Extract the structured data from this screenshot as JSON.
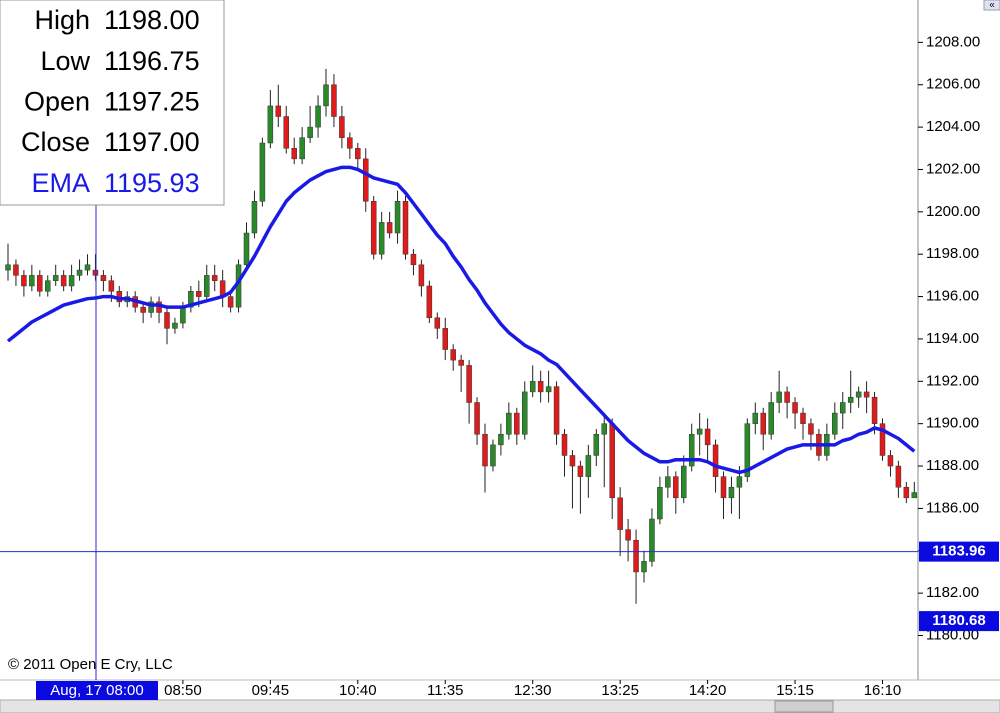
{
  "chart_data": {
    "type": "candlestick",
    "categories": [
      null,
      null,
      null,
      null,
      null,
      null,
      null,
      null,
      null,
      null,
      null,
      null,
      null,
      null,
      null,
      null,
      null,
      null,
      null,
      null,
      null,
      null,
      "08:50",
      null,
      null,
      null,
      null,
      null,
      null,
      null,
      null,
      null,
      null,
      "09:45",
      null,
      null,
      null,
      null,
      null,
      null,
      null,
      null,
      null,
      null,
      "10:40",
      null,
      null,
      null,
      null,
      null,
      null,
      null,
      null,
      null,
      null,
      "11:35",
      null,
      null,
      null,
      null,
      null,
      null,
      null,
      null,
      null,
      null,
      "12:30",
      null,
      null,
      null,
      null,
      null,
      null,
      null,
      null,
      null,
      null,
      "13:25",
      null,
      null,
      null,
      null,
      null,
      null,
      null,
      null,
      null,
      null,
      "14:20",
      null,
      null,
      null,
      null,
      null,
      null,
      null,
      null,
      null,
      null,
      "15:15",
      null,
      null,
      null,
      null,
      null,
      null,
      null,
      null,
      null,
      null,
      "16:10",
      null,
      null,
      null,
      null
    ],
    "open": [
      1197.25,
      1197.5,
      1197,
      1196.5,
      1197,
      1196.25,
      1196.75,
      1197,
      1196.5,
      1197,
      1197.25,
      1197.25,
      1197,
      1196.75,
      1196.25,
      1195.75,
      1196,
      1195.5,
      1195.25,
      1195.75,
      1195.25,
      1194.5,
      1194.75,
      1195.5,
      1196.25,
      1196,
      1197,
      1196.75,
      1196,
      1195.5,
      1197.5,
      1199,
      1200.5,
      1203.25,
      1205,
      1204.5,
      1203,
      1202.5,
      1203.5,
      1204,
      1205,
      1206,
      1204.5,
      1203.5,
      1203,
      1202.5,
      1200.5,
      1198,
      1199.5,
      1199,
      1200.5,
      1198,
      1197.5,
      1196.5,
      1195,
      1194.5,
      1193.5,
      1193,
      1192.75,
      1191,
      1189.5,
      1188,
      1189,
      1189.5,
      1190.5,
      1189.5,
      1191.5,
      1192,
      1191.5,
      1191.75,
      1189.5,
      1188.5,
      1188,
      1187.5,
      1188.5,
      1189.5,
      1190,
      1186.5,
      1185,
      1184.5,
      1183,
      1183.5,
      1185.5,
      1187,
      1187.5,
      1186.5,
      1188,
      1189.5,
      1189.75,
      1189,
      1187.5,
      1186.5,
      1187,
      1187.5,
      1190,
      1190.5,
      1189.5,
      1191,
      1191.5,
      1191,
      1190.5,
      1190,
      1189.5,
      1188.5,
      1189.5,
      1190.5,
      1191,
      1191.25,
      1191.5,
      1191.25,
      1190,
      1188.5,
      1188,
      1187,
      1186.5
    ],
    "high": [
      1198.5,
      1197.75,
      1197.25,
      1197.5,
      1197.25,
      1197,
      1197.5,
      1197.25,
      1197.5,
      1197.75,
      1198,
      1198,
      1197.25,
      1197,
      1196.5,
      1196.25,
      1196.25,
      1195.75,
      1196,
      1196,
      1195.5,
      1195,
      1195.75,
      1196.5,
      1196.75,
      1197.5,
      1197.5,
      1197.25,
      1196.25,
      1197.75,
      1199.5,
      1201,
      1203.5,
      1205.75,
      1206,
      1205,
      1203.5,
      1204,
      1205,
      1205.5,
      1206.75,
      1206.5,
      1205,
      1203.75,
      1203.25,
      1203,
      1200.75,
      1200,
      1200,
      1201,
      1200.75,
      1198.25,
      1197.75,
      1196.75,
      1195.25,
      1195,
      1193.75,
      1193.25,
      1193,
      1191.25,
      1190,
      1189.25,
      1190,
      1191,
      1190.75,
      1192,
      1192.75,
      1192.5,
      1192.5,
      1192,
      1189.75,
      1188.75,
      1188.25,
      1189,
      1189.75,
      1190.5,
      1190.25,
      1187,
      1185.5,
      1185,
      1184,
      1186,
      1187.5,
      1188,
      1187.75,
      1188.5,
      1190,
      1190.5,
      1190.25,
      1189.25,
      1187.75,
      1187.5,
      1188,
      1190.25,
      1191,
      1190.75,
      1191.5,
      1192.5,
      1191.75,
      1191.25,
      1190.75,
      1190.25,
      1189.75,
      1190,
      1191,
      1191.5,
      1192.5,
      1191.75,
      1192,
      1191.5,
      1190.25,
      1188.75,
      1188.25,
      1187.25,
      1187.25
    ],
    "low": [
      1196.75,
      1196.5,
      1196,
      1196.25,
      1196,
      1196,
      1196.5,
      1196.25,
      1196.25,
      1196.75,
      1197,
      1196.75,
      1196.25,
      1195.75,
      1195.5,
      1195.5,
      1195.25,
      1194.75,
      1195,
      1194.75,
      1193.75,
      1194.25,
      1194.5,
      1195.25,
      1195.5,
      1195.75,
      1196.25,
      1195.5,
      1195.25,
      1195.25,
      1197.25,
      1198.75,
      1200.25,
      1203,
      1204,
      1202.75,
      1202.25,
      1202.25,
      1203.25,
      1203.5,
      1204.5,
      1204,
      1203,
      1202.5,
      1202,
      1200,
      1197.75,
      1197.75,
      1198.75,
      1198.5,
      1197.75,
      1197,
      1196,
      1194.75,
      1194,
      1193,
      1192.5,
      1191.5,
      1190,
      1189,
      1186.75,
      1187.75,
      1188.5,
      1189.25,
      1189,
      1189.25,
      1191.25,
      1191,
      1191,
      1189,
      1187.5,
      1186,
      1185.75,
      1186.5,
      1188,
      1187,
      1185.5,
      1183.75,
      1183.5,
      1181.5,
      1182.5,
      1183.25,
      1185.25,
      1186.5,
      1185.75,
      1186.25,
      1187.75,
      1188.5,
      1188.25,
      1186.75,
      1185.5,
      1185.75,
      1185.5,
      1187.25,
      1189.5,
      1188.75,
      1189.25,
      1190.5,
      1190.25,
      1189.75,
      1189.25,
      1188.75,
      1188.25,
      1188.25,
      1189.25,
      1189.75,
      1190.5,
      1190.75,
      1190.5,
      1189.5,
      1188.25,
      1187.5,
      1186.5,
      1186.25,
      1186.5
    ],
    "close": [
      1197.5,
      1197,
      1196.5,
      1197,
      1196.25,
      1196.75,
      1197,
      1196.5,
      1197,
      1197.25,
      1197.5,
      1197,
      1196.75,
      1196.25,
      1195.75,
      1196,
      1195.5,
      1195.25,
      1195.75,
      1195.25,
      1194.5,
      1194.75,
      1195.5,
      1196.25,
      1196,
      1197,
      1196.75,
      1196,
      1195.5,
      1197.5,
      1199,
      1200.5,
      1203.25,
      1205,
      1204.5,
      1203,
      1202.5,
      1203.5,
      1204,
      1205,
      1206,
      1204.5,
      1203.5,
      1203,
      1202.5,
      1200.5,
      1198,
      1199.5,
      1199,
      1200.5,
      1198,
      1197.5,
      1196.5,
      1195,
      1194.5,
      1193.5,
      1193,
      1192.75,
      1191,
      1189.5,
      1188,
      1189,
      1189.5,
      1190.5,
      1189.5,
      1191.5,
      1192,
      1191.5,
      1191.75,
      1189.5,
      1188.5,
      1188,
      1187.5,
      1188.5,
      1189.5,
      1190,
      1186.5,
      1185,
      1184.5,
      1183,
      1183.5,
      1185.5,
      1187,
      1187.5,
      1186.5,
      1188,
      1189.5,
      1189.75,
      1189,
      1187.5,
      1186.5,
      1187,
      1187.5,
      1190,
      1190.5,
      1189.5,
      1191,
      1191.5,
      1191,
      1190.5,
      1190,
      1189.5,
      1188.5,
      1189.5,
      1190.5,
      1191,
      1191.25,
      1191.5,
      1191.25,
      1190,
      1188.5,
      1188,
      1187,
      1186.5,
      1186.75
    ],
    "up_color": "#2a8a2a",
    "down_color": "#e01b1b",
    "series": [
      {
        "name": "EMA",
        "color": "#1a1ae6",
        "values": [
          1193.9,
          1194.2,
          1194.5,
          1194.8,
          1195.0,
          1195.2,
          1195.4,
          1195.6,
          1195.7,
          1195.8,
          1195.9,
          1195.93,
          1196.0,
          1196.0,
          1195.9,
          1195.9,
          1195.8,
          1195.7,
          1195.6,
          1195.6,
          1195.5,
          1195.5,
          1195.5,
          1195.6,
          1195.7,
          1195.8,
          1195.9,
          1196.0,
          1196.2,
          1196.7,
          1197.3,
          1197.9,
          1198.6,
          1199.3,
          1199.9,
          1200.5,
          1200.9,
          1201.2,
          1201.5,
          1201.7,
          1201.9,
          1202.0,
          1202.1,
          1202.1,
          1202.0,
          1201.8,
          1201.6,
          1201.5,
          1201.4,
          1201.3,
          1200.9,
          1200.4,
          1199.9,
          1199.4,
          1198.9,
          1198.5,
          1197.9,
          1197.4,
          1196.8,
          1196.3,
          1195.7,
          1195.2,
          1194.7,
          1194.3,
          1194.0,
          1193.7,
          1193.5,
          1193.3,
          1193.0,
          1192.8,
          1192.4,
          1192.0,
          1191.6,
          1191.2,
          1190.8,
          1190.4,
          1190.0,
          1189.6,
          1189.2,
          1188.9,
          1188.6,
          1188.4,
          1188.2,
          1188.2,
          1188.3,
          1188.3,
          1188.3,
          1188.3,
          1188.2,
          1188.0,
          1187.9,
          1187.8,
          1187.7,
          1187.8,
          1188.0,
          1188.2,
          1188.4,
          1188.6,
          1188.8,
          1188.9,
          1189.0,
          1189.0,
          1189.0,
          1189.0,
          1189.0,
          1189.2,
          1189.3,
          1189.5,
          1189.6,
          1189.8,
          1189.7,
          1189.5,
          1189.3,
          1189.0,
          1188.7
        ]
      }
    ],
    "ylim": [
      1177.9,
      1210.0
    ],
    "yticks": [
      {
        "value": 1180,
        "label": "1180.00"
      },
      {
        "value": 1182,
        "label": "1182.00"
      },
      {
        "value": 1184,
        "label": "1184.00"
      },
      {
        "value": 1186,
        "label": "1186.00"
      },
      {
        "value": 1188,
        "label": "1188.00"
      },
      {
        "value": 1190,
        "label": "1190.00"
      },
      {
        "value": 1192,
        "label": "1192.00"
      },
      {
        "value": 1194,
        "label": "1194.00"
      },
      {
        "value": 1196,
        "label": "1196.00"
      },
      {
        "value": 1198,
        "label": "1198.00"
      },
      {
        "value": 1200,
        "label": "1200.00"
      },
      {
        "value": 1202,
        "label": "1202.00"
      },
      {
        "value": 1204,
        "label": "1204.00"
      },
      {
        "value": 1206,
        "label": "1206.00"
      },
      {
        "value": 1208,
        "label": "1208.00"
      }
    ],
    "info_box": {
      "rows": [
        {
          "label": "High",
          "value": "1198.00"
        },
        {
          "label": "Low",
          "value": "1196.75"
        },
        {
          "label": "Open",
          "value": "1197.25"
        },
        {
          "label": "Close",
          "value": "1197.00"
        }
      ],
      "ema_value": "1195.93"
    },
    "crosshair": {
      "x_label": "Aug, 17 08:00",
      "y": {
        "value": 1183.96,
        "label": "1183.96"
      }
    },
    "price_marker": {
      "value": 1180.68,
      "label": "1180.68"
    },
    "copyright": "© 2011 Open E Cry, LLC"
  }
}
